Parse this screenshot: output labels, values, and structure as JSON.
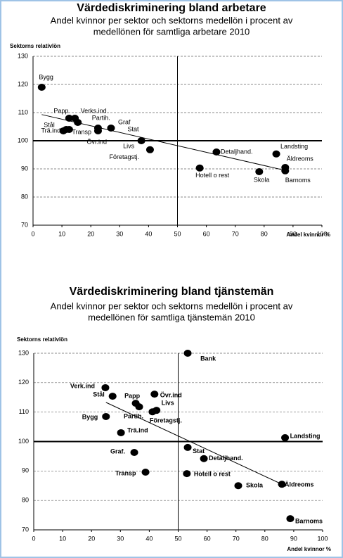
{
  "chart_data": [
    {
      "type": "scatter",
      "title": "Värdediskriminering bland arbetare",
      "subtitle": [
        "Andel kvinnor per sektor och sektorns medellön i procent av",
        "medellönen för samtliga arbetare  2010"
      ],
      "y_label": "Sektorns relativlön",
      "x_label": "Andel kvinnor %",
      "labels": [
        "Bygg",
        "Papp",
        "Verks.ind",
        "Partih.",
        "Stål",
        "Trä.ind",
        "Transp",
        "Övr.ind",
        "Graf",
        "Stat",
        "Livs",
        "Företagstj.",
        "Detaljhand.",
        "Hotell o rest",
        "Skola",
        "Landsting",
        "Äldreoms",
        "Barnoms"
      ],
      "x": [
        3,
        12.5,
        14.5,
        15.5,
        11.5,
        10.5,
        12.5,
        22.5,
        27,
        22.5,
        37.5,
        40.5,
        63.5,
        57.7,
        78.3,
        84.2,
        87.3,
        87.3
      ],
      "values": [
        119,
        108,
        108,
        106.5,
        104,
        103.5,
        104,
        104.5,
        104.5,
        103.5,
        100,
        96.8,
        96,
        90.3,
        89,
        95.3,
        90.5,
        89.3
      ],
      "color": "#000000",
      "trendline": {
        "x": [
          3,
          88
        ],
        "y": [
          109.3,
          89.3
        ]
      },
      "hline": 100,
      "vline": 50,
      "xlim": [
        0,
        100
      ],
      "ylim": [
        70,
        130
      ],
      "xticks": [
        0,
        10,
        20,
        30,
        40,
        50,
        60,
        70,
        80,
        90,
        100
      ],
      "yticks": [
        70,
        80,
        90,
        100,
        110,
        120,
        130
      ],
      "grid": true
    },
    {
      "type": "scatter",
      "title": "Värdediskriminering bland tjänstemän",
      "subtitle": [
        "Andel kvinnor per sektor och sektorns medellön i procent av",
        "medellönen för samtliga tjänstemän  2010"
      ],
      "y_label": "Sektorns relativlön",
      "x_label": "Andel kvinnor %",
      "labels": [
        "Bank",
        "Verk.ind",
        "Stål",
        "Papp",
        "Partih.",
        "Övr.ind",
        "Livs",
        "Företagstj.",
        "Bygg",
        "Trä.ind",
        "Landsting",
        "Stat",
        "Graf.",
        "Detaljhand.",
        "Transp",
        "Hotell o rest",
        "Skola",
        "Äldreoms",
        "Barnoms"
      ],
      "x": [
        53.3,
        24.8,
        27.3,
        35.3,
        36.5,
        41.8,
        42.5,
        41.1,
        25,
        30.2,
        87,
        53.3,
        34.8,
        58.9,
        38.7,
        53,
        70.8,
        85.9,
        88.8
      ],
      "values": [
        130,
        118.3,
        115.4,
        113,
        111.8,
        116.1,
        110.6,
        110.1,
        108.5,
        103,
        101.3,
        98,
        96.3,
        94.2,
        89.6,
        89.1,
        85,
        85.5,
        73.8
      ],
      "color": "#000000",
      "trendline": {
        "x": [
          25,
          87
        ],
        "y": [
          113.3,
          85
        ]
      },
      "hline": 100,
      "vline": 50,
      "xlim": [
        0,
        100
      ],
      "ylim": [
        70,
        130
      ],
      "xticks": [
        0,
        10,
        20,
        30,
        40,
        50,
        60,
        70,
        80,
        90,
        100
      ],
      "yticks": [
        70,
        80,
        90,
        100,
        110,
        120,
        130
      ],
      "grid": true
    }
  ]
}
